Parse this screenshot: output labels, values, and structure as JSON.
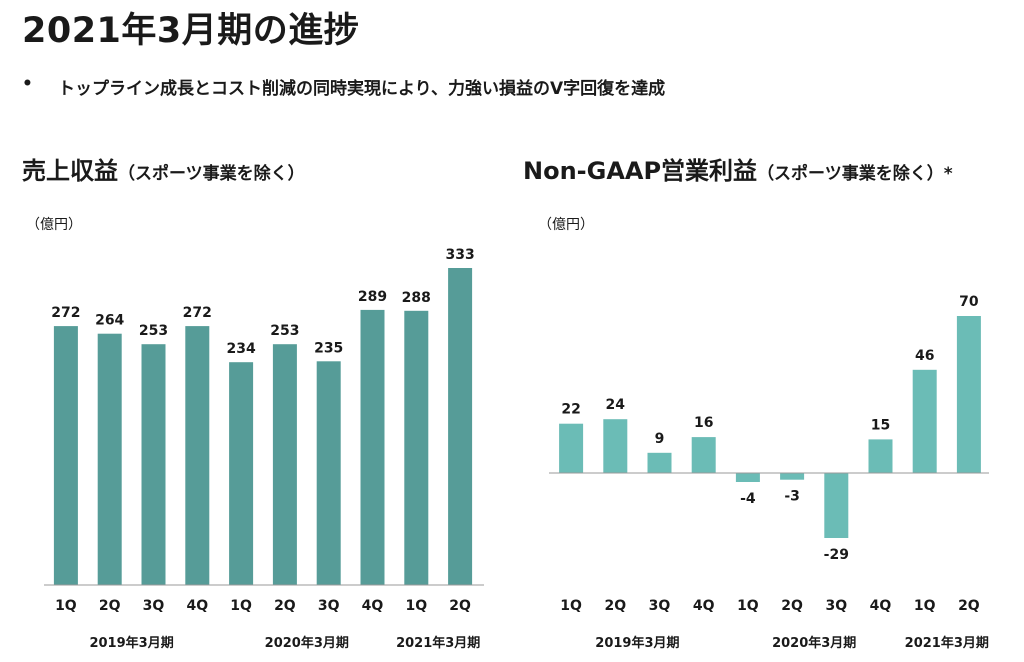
{
  "page": {
    "title": "2021年3月期の進捗",
    "bullet_marker": "•",
    "bullet": "トップライン成長とコスト削減の同時実現により、力強い損益のV字回復を達成"
  },
  "chart_data": [
    {
      "type": "bar",
      "title": "売上収益",
      "subtitle": "（スポーツ事業を除く）",
      "unit": "（億円）",
      "categories": [
        "1Q",
        "2Q",
        "3Q",
        "4Q",
        "1Q",
        "2Q",
        "3Q",
        "4Q",
        "1Q",
        "2Q"
      ],
      "groups": [
        {
          "label": "2019年3月期",
          "count": 4
        },
        {
          "label": "2020年3月期",
          "count": 4
        },
        {
          "label": "2021年3月期",
          "count": 2
        }
      ],
      "values": [
        272,
        264,
        253,
        272,
        234,
        253,
        235,
        289,
        288,
        333
      ],
      "ylim": [
        0,
        360
      ],
      "color": "#569c98",
      "grid": false
    },
    {
      "type": "bar",
      "title": "Non-GAAP営業利益",
      "subtitle": "（スポーツ事業を除く）",
      "suffix": "*",
      "unit": "（億円）",
      "categories": [
        "1Q",
        "2Q",
        "3Q",
        "4Q",
        "1Q",
        "2Q",
        "3Q",
        "4Q",
        "1Q",
        "2Q"
      ],
      "groups": [
        {
          "label": "2019年3月期",
          "count": 4
        },
        {
          "label": "2020年3月期",
          "count": 4
        },
        {
          "label": "2021年3月期",
          "count": 2
        }
      ],
      "values": [
        22,
        24,
        9,
        16,
        -4,
        -3,
        -29,
        15,
        46,
        70
      ],
      "ylim": [
        -40,
        90
      ],
      "color": "#6bbcb6",
      "grid": false
    }
  ]
}
